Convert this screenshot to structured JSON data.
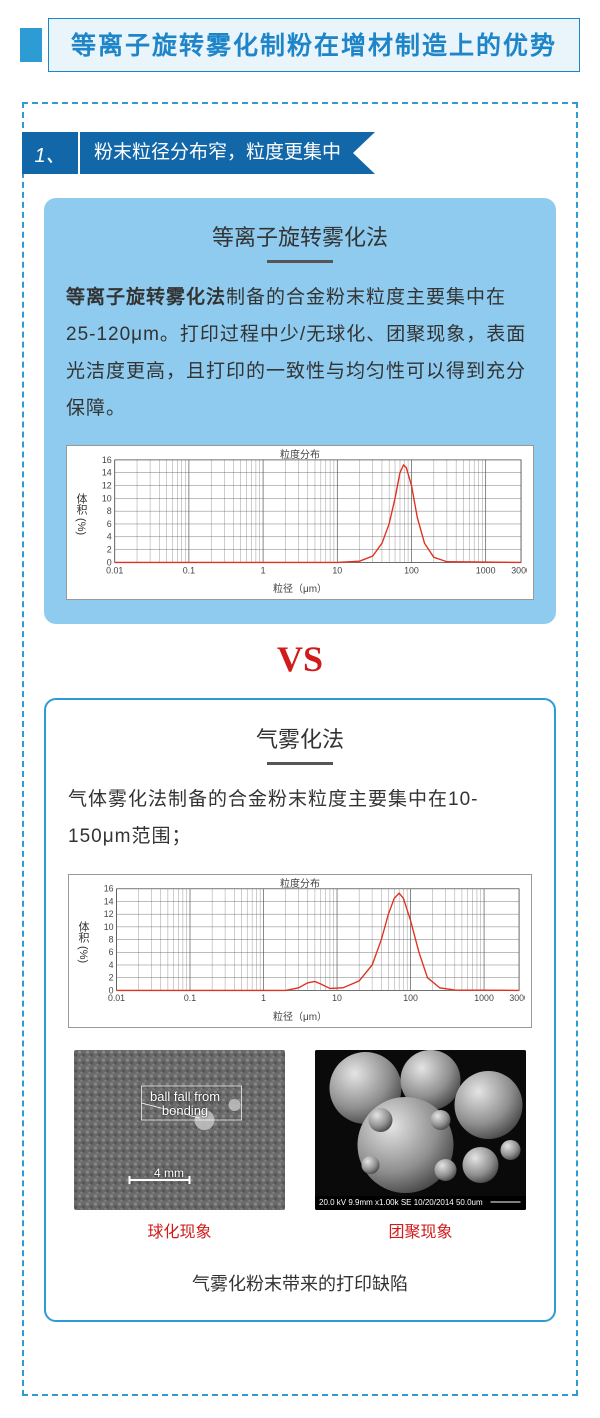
{
  "page": {
    "title": "等离子旋转雾化制粉在增材制造上的优势"
  },
  "section": {
    "number": "1、",
    "label": "粉末粒径分布窄，粒度更集中"
  },
  "method_a": {
    "title": "等离子旋转雾化法",
    "body_strong": "等离子旋转雾化法",
    "body_rest": "制备的合金粉末粒度主要集中在25-120μm。打印过程中少/无球化、团聚现象，表面光洁度更高，且打印的一致性与均匀性可以得到充分保障。"
  },
  "vs": "VS",
  "method_b": {
    "title": "气雾化法",
    "body": "气体雾化法制备的合金粉末粒度主要集中在10-150μm范围；"
  },
  "chart_a": {
    "mini_title": "粒度分布",
    "y_label": "体积 (%)",
    "x_label": "粒径（μm）",
    "ylim": [
      0,
      16
    ],
    "ytick_step": 2,
    "y_ticks": [
      0,
      2,
      4,
      6,
      8,
      10,
      12,
      14,
      16
    ],
    "x_decades": [
      0.01,
      0.1,
      1,
      10,
      100,
      1000,
      3000
    ],
    "curve_color": "#e03020",
    "grid_color": "#555555",
    "bg_color": "#ffffff",
    "curve_points": [
      [
        0.01,
        0
      ],
      [
        10,
        0
      ],
      [
        20,
        0.2
      ],
      [
        30,
        1
      ],
      [
        40,
        3
      ],
      [
        50,
        6
      ],
      [
        60,
        10
      ],
      [
        70,
        14
      ],
      [
        78,
        15.2
      ],
      [
        85,
        14.8
      ],
      [
        100,
        12
      ],
      [
        120,
        7
      ],
      [
        150,
        3
      ],
      [
        200,
        0.8
      ],
      [
        300,
        0.1
      ],
      [
        3000,
        0
      ]
    ]
  },
  "chart_b": {
    "mini_title": "粒度分布",
    "y_label": "体积 (%)",
    "x_label": "粒径（μm）",
    "ylim": [
      0,
      16
    ],
    "ytick_step": 2,
    "y_ticks": [
      0,
      2,
      4,
      6,
      8,
      10,
      12,
      14,
      16
    ],
    "x_decades": [
      0.01,
      0.1,
      1,
      10,
      100,
      1000,
      3000
    ],
    "curve_color": "#e03020",
    "grid_color": "#555555",
    "bg_color": "#ffffff",
    "curve_points": [
      [
        0.01,
        0
      ],
      [
        2,
        0
      ],
      [
        3,
        0.4
      ],
      [
        4,
        1.2
      ],
      [
        5,
        1.4
      ],
      [
        6,
        1.0
      ],
      [
        8,
        0.3
      ],
      [
        12,
        0.4
      ],
      [
        20,
        1.5
      ],
      [
        30,
        4
      ],
      [
        40,
        8
      ],
      [
        50,
        12
      ],
      [
        60,
        14.5
      ],
      [
        70,
        15.3
      ],
      [
        80,
        14.5
      ],
      [
        100,
        11
      ],
      [
        130,
        6
      ],
      [
        170,
        2
      ],
      [
        250,
        0.4
      ],
      [
        400,
        0.05
      ],
      [
        3000,
        0
      ]
    ]
  },
  "sem": {
    "img1_label": "ball fall from\nbonding",
    "img1_scale": "4 mm",
    "img1_caption": "球化现象",
    "img2_caption": "团聚现象",
    "img2_meta": "20.0 kV 9.9mm x1.00k SE  10/20/2014            50.0um"
  },
  "defect_note": "气雾化粉末带来的打印缺陷"
}
